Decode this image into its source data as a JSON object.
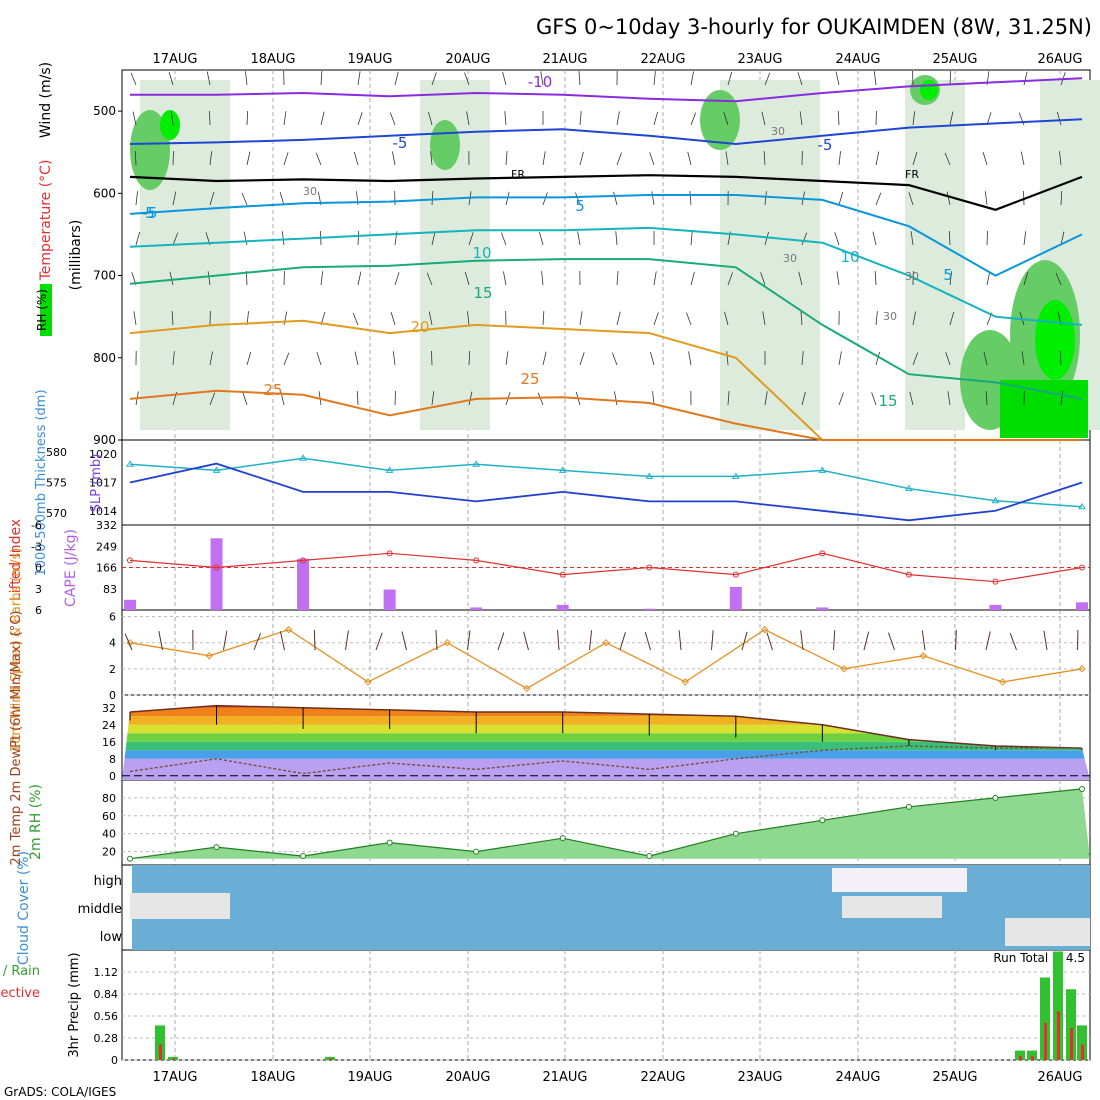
{
  "title": "GFS 0~10day 3-hourly for OUKAIMDEN (8W, 31.25N)",
  "footer": "GrADS: COLA/IGES",
  "chart_data": {
    "type": "meteogram",
    "dates": [
      "17AUG",
      "18AUG",
      "19AUG",
      "20AUG",
      "21AUG",
      "22AUG",
      "23AUG",
      "24AUG",
      "25AUG",
      "26AUG"
    ],
    "upper_air": {
      "ylabel": "(millibars)",
      "legend_rh": "RH (%)",
      "legend_temp": "Temperature (°C)",
      "legend_wind": "Wind (m/s)",
      "yticks": [
        "500",
        "600",
        "700",
        "800",
        "900"
      ],
      "ylim": [
        450,
        900
      ],
      "isotherm_labels": [
        "-10",
        "-5",
        "-5",
        "FR",
        "FR",
        "-5",
        "5",
        "5",
        "10",
        "10",
        "15",
        "15",
        "20",
        "25",
        "25",
        "5"
      ],
      "rh_labels": [
        "30",
        "30",
        "30",
        "30",
        "30"
      ],
      "isotherms": [
        {
          "label": "-10",
          "color": "#8a2be2",
          "p": [
            480,
            480,
            478,
            482,
            478,
            480,
            485,
            488,
            478,
            470,
            465,
            460
          ]
        },
        {
          "label": "-5",
          "color": "#1e46d2",
          "p": [
            540,
            538,
            535,
            530,
            525,
            522,
            530,
            540,
            530,
            520,
            515,
            510
          ]
        },
        {
          "label": "FR",
          "color": "#000000",
          "p": [
            580,
            585,
            583,
            585,
            582,
            580,
            578,
            580,
            585,
            590,
            620,
            580
          ]
        },
        {
          "label": "5",
          "color": "#0a96dc",
          "p": [
            625,
            618,
            612,
            610,
            605,
            605,
            602,
            602,
            608,
            640,
            700,
            650
          ]
        },
        {
          "label": "10",
          "color": "#12b4be",
          "p": [
            665,
            660,
            655,
            650,
            645,
            645,
            642,
            650,
            660,
            700,
            750,
            760
          ]
        },
        {
          "label": "15",
          "color": "#18aa78",
          "p": [
            710,
            700,
            690,
            688,
            682,
            680,
            680,
            690,
            760,
            820,
            830,
            850
          ]
        },
        {
          "label": "20",
          "color": "#e19b1e",
          "p": [
            770,
            760,
            755,
            770,
            760,
            765,
            770,
            800,
            900,
            900,
            900,
            900
          ]
        },
        {
          "label": "25",
          "color": "#e1781e",
          "p": [
            850,
            840,
            845,
            870,
            850,
            848,
            855,
            880,
            900,
            900,
            900,
            900
          ]
        }
      ]
    },
    "thickness_slp": {
      "ylabel_left": "1000-500mb Thickness (dm)",
      "ylabel_right": "SLP (mb)",
      "thickness_ticks": [
        "580",
        "575",
        "570"
      ],
      "slp_ticks": [
        "1020",
        "1017",
        "1014"
      ],
      "slp_range": [
        1012.5,
        1021.5
      ],
      "thickness": [
        578,
        577,
        579,
        577,
        578,
        577,
        576,
        576,
        577,
        574,
        572,
        571
      ],
      "slp": [
        1017,
        1019,
        1016,
        1016,
        1015,
        1016,
        1015,
        1015,
        1014,
        1013,
        1014,
        1017
      ]
    },
    "lifted_cape": {
      "ylabel_left": "Lifted Index",
      "ylabel_right": "CAPE (J/kg)",
      "li_ticks": [
        "-6",
        "-3",
        "0",
        "3",
        "6"
      ],
      "cape_ticks": [
        "332",
        "249",
        "166",
        "83"
      ],
      "cape_range": [
        0,
        332
      ],
      "li": [
        -1,
        0,
        -1,
        -2,
        -1,
        1,
        0,
        1,
        -2,
        1,
        2,
        0
      ],
      "cape": [
        40,
        280,
        200,
        80,
        10,
        20,
        5,
        90,
        10,
        0,
        20,
        30
      ]
    },
    "wind10m": {
      "ylabel": "10m Wind Speed & Barbs (m/s)",
      "yticks": [
        "6",
        "4",
        "2",
        "0"
      ],
      "ylim": [
        0,
        6.5
      ],
      "speed": [
        4,
        3,
        5,
        1,
        4,
        0.5,
        4,
        1,
        5,
        2,
        3,
        1,
        2
      ]
    },
    "temp2m": {
      "ylabel": "2m Temp 2m DewPt (6hr Min/Max) (°C)",
      "yticks": [
        "32",
        "24",
        "16",
        "8",
        "0"
      ],
      "ylim": [
        -2,
        38
      ],
      "temp_max": [
        30,
        33,
        32,
        31,
        30,
        30,
        29,
        28,
        24,
        17,
        14,
        13
      ],
      "temp_min": [
        26,
        24,
        22,
        22,
        20,
        20,
        19,
        18,
        16,
        14,
        12,
        12
      ],
      "dewpoint": [
        2,
        8,
        1,
        6,
        3,
        7,
        3,
        8,
        12,
        14,
        13,
        13
      ]
    },
    "rh2m": {
      "ylabel": "2m RH (%)",
      "yticks": [
        "80",
        "60",
        "40",
        "20"
      ],
      "ylim": [
        5,
        100
      ],
      "rh": [
        12,
        25,
        15,
        30,
        20,
        35,
        15,
        40,
        55,
        70,
        80,
        90
      ]
    },
    "cloud": {
      "ylabel": "Cloud Cover (%)",
      "levels": [
        "high",
        "middle",
        "low"
      ]
    },
    "precip": {
      "ylabel": "3hr Precip (mm)",
      "legend_total": "Total / Rain",
      "legend_convective": "Convective",
      "yticks": [
        "1.12",
        "0.84",
        "0.56",
        "0.28",
        "0"
      ],
      "ylim": [
        0,
        1.4
      ],
      "run_total": "Run Total = 4.5"
    }
  }
}
